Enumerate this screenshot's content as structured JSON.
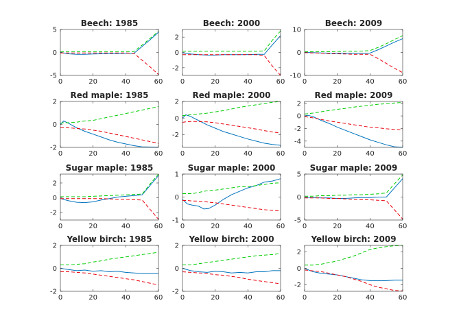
{
  "chart_data": [
    {
      "type": "line",
      "title": "Beech: 1985",
      "xlim": [
        0,
        60
      ],
      "ylim": [
        -5,
        5
      ],
      "xticks": [
        0,
        20,
        40,
        60
      ],
      "yticks": [
        -5,
        0,
        5
      ],
      "grid": false,
      "x": [
        0,
        5,
        10,
        15,
        20,
        25,
        30,
        35,
        40,
        45,
        50,
        55,
        60
      ],
      "series": [
        {
          "color": "#0072bd",
          "dash": false,
          "values": [
            0,
            -0.3,
            -0.4,
            -0.4,
            -0.35,
            -0.3,
            -0.25,
            -0.25,
            -0.2,
            -0.2,
            1.3,
            2.8,
            4.4
          ]
        },
        {
          "color": "#00cc00",
          "dash": true,
          "values": [
            0.2,
            0.2,
            0.2,
            0.2,
            0.2,
            0.2,
            0.2,
            0.2,
            0.2,
            0.2,
            1.6,
            3.1,
            4.6
          ]
        },
        {
          "color": "#e8000b",
          "dash": true,
          "values": [
            -0.1,
            -0.1,
            -0.1,
            -0.1,
            -0.1,
            -0.1,
            -0.1,
            -0.1,
            -0.1,
            -0.2,
            -1.7,
            -3.2,
            -4.8
          ]
        }
      ]
    },
    {
      "type": "line",
      "title": "Beech: 2000",
      "xlim": [
        0,
        60
      ],
      "ylim": [
        -3,
        3
      ],
      "xticks": [
        0,
        20,
        40,
        60
      ],
      "yticks": [
        -2,
        0,
        2
      ],
      "grid": false,
      "x": [
        0,
        5,
        10,
        15,
        20,
        25,
        30,
        35,
        40,
        45,
        50,
        55,
        60
      ],
      "series": [
        {
          "color": "#0072bd",
          "dash": false,
          "values": [
            -0.05,
            -0.2,
            -0.3,
            -0.35,
            -0.35,
            -0.3,
            -0.3,
            -0.3,
            -0.28,
            -0.25,
            -0.25,
            1.0,
            2.2
          ]
        },
        {
          "color": "#00cc00",
          "dash": true,
          "values": [
            0.15,
            0.15,
            0.15,
            0.15,
            0.15,
            0.15,
            0.15,
            0.15,
            0.15,
            0.15,
            0.2,
            1.6,
            2.8
          ]
        },
        {
          "color": "#e8000b",
          "dash": true,
          "values": [
            -0.3,
            -0.3,
            -0.3,
            -0.3,
            -0.3,
            -0.3,
            -0.3,
            -0.3,
            -0.3,
            -0.3,
            -0.4,
            -1.8,
            -3.0
          ]
        }
      ]
    },
    {
      "type": "line",
      "title": "Beech: 2009",
      "xlim": [
        0,
        60
      ],
      "ylim": [
        -10,
        10
      ],
      "xticks": [
        0,
        20,
        40,
        60
      ],
      "yticks": [
        -10,
        0,
        10
      ],
      "grid": false,
      "x": [
        0,
        5,
        10,
        15,
        20,
        25,
        30,
        35,
        40,
        45,
        50,
        55,
        60
      ],
      "series": [
        {
          "color": "#0072bd",
          "dash": false,
          "values": [
            0,
            -0.1,
            -0.2,
            -0.3,
            -0.3,
            -0.3,
            -0.35,
            -0.35,
            -0.3,
            1.2,
            2.8,
            4.5,
            6.0
          ]
        },
        {
          "color": "#00cc00",
          "dash": true,
          "values": [
            0.3,
            0.3,
            0.3,
            0.3,
            0.4,
            0.5,
            0.5,
            0.6,
            0.8,
            2.2,
            3.8,
            5.6,
            7.3
          ]
        },
        {
          "color": "#e8000b",
          "dash": true,
          "values": [
            -0.1,
            -0.2,
            -0.3,
            -0.5,
            -0.6,
            -0.7,
            -0.8,
            -0.8,
            -0.8,
            -2.7,
            -4.8,
            -6.9,
            -8.8
          ]
        }
      ]
    },
    {
      "type": "line",
      "title": "Red maple: 1985",
      "xlim": [
        0,
        60
      ],
      "ylim": [
        -2,
        2
      ],
      "xticks": [
        0,
        20,
        40,
        60
      ],
      "yticks": [
        -2,
        0,
        2
      ],
      "grid": false,
      "x": [
        0,
        2,
        5,
        10,
        15,
        20,
        25,
        30,
        35,
        40,
        45,
        50,
        55,
        60
      ],
      "series": [
        {
          "color": "#0072bd",
          "dash": false,
          "values": [
            0,
            0.3,
            0.1,
            -0.3,
            -0.6,
            -0.85,
            -1.1,
            -1.35,
            -1.55,
            -1.7,
            -1.85,
            -1.95,
            -1.97,
            -2.0
          ]
        },
        {
          "color": "#00cc00",
          "dash": true,
          "values": [
            0.1,
            0.15,
            0.15,
            0.2,
            0.3,
            0.35,
            0.5,
            0.65,
            0.8,
            0.95,
            1.1,
            1.25,
            1.4,
            1.55
          ]
        },
        {
          "color": "#e8000b",
          "dash": true,
          "values": [
            -0.3,
            -0.3,
            -0.3,
            -0.35,
            -0.4,
            -0.5,
            -0.6,
            -0.75,
            -0.9,
            -1.05,
            -1.2,
            -1.35,
            -1.5,
            -1.65
          ]
        }
      ]
    },
    {
      "type": "line",
      "title": "Red maple: 2000",
      "xlim": [
        0,
        60
      ],
      "ylim": [
        -3.5,
        2
      ],
      "xticks": [
        0,
        20,
        40,
        60
      ],
      "yticks": [
        -2,
        0,
        2
      ],
      "grid": false,
      "x": [
        0,
        2,
        5,
        10,
        15,
        20,
        25,
        30,
        35,
        40,
        45,
        50,
        55,
        60
      ],
      "series": [
        {
          "color": "#0072bd",
          "dash": false,
          "values": [
            0,
            0.4,
            0.2,
            -0.3,
            -0.8,
            -1.2,
            -1.6,
            -1.9,
            -2.2,
            -2.5,
            -2.75,
            -3.0,
            -3.15,
            -3.25
          ]
        },
        {
          "color": "#00cc00",
          "dash": true,
          "values": [
            0.3,
            0.35,
            0.4,
            0.5,
            0.6,
            0.75,
            0.9,
            1.1,
            1.3,
            1.45,
            1.6,
            1.75,
            1.9,
            2.0
          ]
        },
        {
          "color": "#e8000b",
          "dash": true,
          "values": [
            -0.5,
            -0.45,
            -0.4,
            -0.4,
            -0.45,
            -0.55,
            -0.7,
            -0.85,
            -1.0,
            -1.15,
            -1.3,
            -1.5,
            -1.65,
            -1.8
          ]
        }
      ]
    },
    {
      "type": "line",
      "title": "Red maple: 2009",
      "xlim": [
        0,
        60
      ],
      "ylim": [
        -5,
        2.3
      ],
      "xticks": [
        0,
        20,
        40,
        60
      ],
      "yticks": [
        -4,
        -2,
        0,
        2
      ],
      "grid": false,
      "x": [
        0,
        2,
        5,
        10,
        15,
        20,
        25,
        30,
        35,
        40,
        45,
        50,
        55,
        60
      ],
      "series": [
        {
          "color": "#0072bd",
          "dash": false,
          "values": [
            0,
            0.1,
            -0.1,
            -0.7,
            -1.2,
            -1.8,
            -2.3,
            -2.8,
            -3.3,
            -3.8,
            -4.2,
            -4.6,
            -4.9,
            -5.0
          ]
        },
        {
          "color": "#00cc00",
          "dash": true,
          "values": [
            0.3,
            0.35,
            0.45,
            0.65,
            0.85,
            1.05,
            1.2,
            1.4,
            1.55,
            1.7,
            1.85,
            1.95,
            2.05,
            2.15
          ]
        },
        {
          "color": "#e8000b",
          "dash": true,
          "values": [
            -0.1,
            -0.2,
            -0.3,
            -0.55,
            -0.8,
            -1.0,
            -1.2,
            -1.4,
            -1.6,
            -1.8,
            -1.9,
            -2.05,
            -2.15,
            -2.25
          ]
        }
      ]
    },
    {
      "type": "line",
      "title": "Sugar maple: 1985",
      "xlim": [
        0,
        60
      ],
      "ylim": [
        -3,
        3.2
      ],
      "xticks": [
        0,
        20,
        40,
        60
      ],
      "yticks": [
        -2,
        0,
        2
      ],
      "grid": false,
      "x": [
        0,
        5,
        10,
        15,
        20,
        25,
        30,
        35,
        40,
        45,
        50,
        55,
        60
      ],
      "series": [
        {
          "color": "#0072bd",
          "dash": false,
          "values": [
            -0.1,
            -0.4,
            -0.6,
            -0.65,
            -0.55,
            -0.3,
            -0.1,
            0.1,
            0.2,
            0.3,
            0.4,
            1.7,
            3.0
          ]
        },
        {
          "color": "#00cc00",
          "dash": true,
          "values": [
            0.15,
            0.15,
            0.15,
            0.15,
            0.2,
            0.25,
            0.3,
            0.35,
            0.4,
            0.45,
            0.5,
            1.9,
            3.2
          ]
        },
        {
          "color": "#e8000b",
          "dash": true,
          "values": [
            -0.1,
            -0.1,
            -0.1,
            -0.1,
            -0.1,
            -0.1,
            -0.15,
            -0.2,
            -0.2,
            -0.25,
            -0.3,
            -1.6,
            -2.9
          ]
        }
      ]
    },
    {
      "type": "line",
      "title": "Sugar maple: 2000",
      "xlim": [
        0,
        60
      ],
      "ylim": [
        -1,
        1
      ],
      "xticks": [
        0,
        20,
        40,
        60
      ],
      "yticks": [
        -1,
        0,
        1
      ],
      "grid": false,
      "x": [
        0,
        3,
        6,
        10,
        13,
        16,
        20,
        25,
        30,
        35,
        40,
        45,
        50,
        55,
        60
      ],
      "series": [
        {
          "color": "#0072bd",
          "dash": false,
          "values": [
            -0.1,
            -0.3,
            -0.35,
            -0.4,
            -0.52,
            -0.5,
            -0.35,
            -0.1,
            0.1,
            0.25,
            0.4,
            0.5,
            0.65,
            0.7,
            0.8
          ]
        },
        {
          "color": "#00cc00",
          "dash": true,
          "values": [
            0.15,
            0.15,
            0.15,
            0.2,
            0.25,
            0.28,
            0.3,
            0.35,
            0.4,
            0.45,
            0.45,
            0.5,
            0.55,
            0.6,
            0.62
          ]
        },
        {
          "color": "#e8000b",
          "dash": true,
          "values": [
            -0.15,
            -0.15,
            -0.17,
            -0.18,
            -0.2,
            -0.22,
            -0.25,
            -0.3,
            -0.35,
            -0.4,
            -0.45,
            -0.5,
            -0.55,
            -0.58,
            -0.6
          ]
        }
      ]
    },
    {
      "type": "line",
      "title": "Sugar maple: 2009",
      "xlim": [
        0,
        60
      ],
      "ylim": [
        -5,
        5
      ],
      "xticks": [
        0,
        20,
        40,
        60
      ],
      "yticks": [
        -5,
        0,
        5
      ],
      "grid": false,
      "x": [
        0,
        5,
        10,
        15,
        20,
        25,
        30,
        35,
        40,
        45,
        50,
        55,
        60
      ],
      "series": [
        {
          "color": "#0072bd",
          "dash": false,
          "values": [
            0,
            -0.1,
            -0.2,
            -0.2,
            -0.3,
            -0.3,
            -0.2,
            -0.1,
            -0.1,
            0,
            0,
            2.0,
            4.0
          ]
        },
        {
          "color": "#00cc00",
          "dash": true,
          "values": [
            0.2,
            0.2,
            0.3,
            0.3,
            0.4,
            0.4,
            0.5,
            0.5,
            0.6,
            0.7,
            0.9,
            2.9,
            4.8
          ]
        },
        {
          "color": "#e8000b",
          "dash": true,
          "values": [
            -0.2,
            -0.2,
            -0.2,
            -0.3,
            -0.3,
            -0.4,
            -0.5,
            -0.6,
            -0.6,
            -0.7,
            -0.8,
            -2.8,
            -4.8
          ]
        }
      ]
    },
    {
      "type": "line",
      "title": "Yellow birch: 1985",
      "xlim": [
        0,
        60
      ],
      "ylim": [
        -2,
        2
      ],
      "xticks": [
        0,
        20,
        40,
        60
      ],
      "yticks": [
        -2,
        0,
        2
      ],
      "grid": false,
      "x": [
        0,
        5,
        10,
        15,
        20,
        25,
        30,
        35,
        40,
        45,
        50,
        55,
        60
      ],
      "series": [
        {
          "color": "#0072bd",
          "dash": false,
          "values": [
            0,
            -0.1,
            -0.2,
            -0.15,
            -0.25,
            -0.2,
            -0.3,
            -0.25,
            -0.35,
            -0.4,
            -0.45,
            -0.45,
            -0.45
          ]
        },
        {
          "color": "#00cc00",
          "dash": true,
          "values": [
            0.3,
            0.3,
            0.35,
            0.4,
            0.55,
            0.65,
            0.8,
            0.9,
            1.0,
            1.1,
            1.2,
            1.3,
            1.4
          ]
        },
        {
          "color": "#e8000b",
          "dash": true,
          "values": [
            -0.3,
            -0.3,
            -0.35,
            -0.4,
            -0.5,
            -0.6,
            -0.7,
            -0.8,
            -0.9,
            -1.0,
            -1.15,
            -1.3,
            -1.45
          ]
        }
      ]
    },
    {
      "type": "line",
      "title": "Yellow birch: 2000",
      "xlim": [
        0,
        60
      ],
      "ylim": [
        -2,
        2
      ],
      "xticks": [
        0,
        20,
        40,
        60
      ],
      "yticks": [
        -2,
        0,
        2
      ],
      "grid": false,
      "x": [
        0,
        5,
        10,
        15,
        20,
        25,
        30,
        35,
        40,
        45,
        50,
        55,
        60
      ],
      "series": [
        {
          "color": "#0072bd",
          "dash": false,
          "values": [
            0,
            -0.2,
            -0.3,
            -0.35,
            -0.25,
            -0.3,
            -0.4,
            -0.35,
            -0.4,
            -0.3,
            -0.3,
            -0.2,
            -0.2
          ]
        },
        {
          "color": "#00cc00",
          "dash": true,
          "values": [
            0.3,
            0.3,
            0.4,
            0.5,
            0.6,
            0.7,
            0.8,
            0.9,
            1.0,
            1.1,
            1.15,
            1.2,
            1.3
          ]
        },
        {
          "color": "#e8000b",
          "dash": true,
          "values": [
            -0.3,
            -0.35,
            -0.4,
            -0.45,
            -0.55,
            -0.6,
            -0.7,
            -0.8,
            -0.95,
            -1.05,
            -1.15,
            -1.25,
            -1.35
          ]
        }
      ]
    },
    {
      "type": "line",
      "title": "Yellow birch: 2009",
      "xlim": [
        0,
        60
      ],
      "ylim": [
        -2.8,
        2.8
      ],
      "xticks": [
        0,
        20,
        40,
        60
      ],
      "yticks": [
        -2,
        0,
        2
      ],
      "grid": false,
      "x": [
        0,
        5,
        10,
        15,
        20,
        25,
        30,
        35,
        40,
        45,
        50,
        55,
        60
      ],
      "series": [
        {
          "color": "#0072bd",
          "dash": false,
          "values": [
            0,
            -0.4,
            -0.6,
            -0.7,
            -0.8,
            -1.0,
            -1.2,
            -1.4,
            -1.5,
            -1.5,
            -1.5,
            -1.45,
            -1.45
          ]
        },
        {
          "color": "#00cc00",
          "dash": true,
          "values": [
            0.4,
            0.4,
            0.5,
            0.7,
            0.9,
            1.2,
            1.5,
            1.9,
            2.3,
            2.5,
            2.65,
            2.75,
            2.8
          ]
        },
        {
          "color": "#e8000b",
          "dash": true,
          "values": [
            -0.2,
            -0.3,
            -0.4,
            -0.6,
            -0.8,
            -1.0,
            -1.3,
            -1.6,
            -2.0,
            -2.3,
            -2.5,
            -2.7,
            -2.75
          ]
        }
      ]
    }
  ]
}
